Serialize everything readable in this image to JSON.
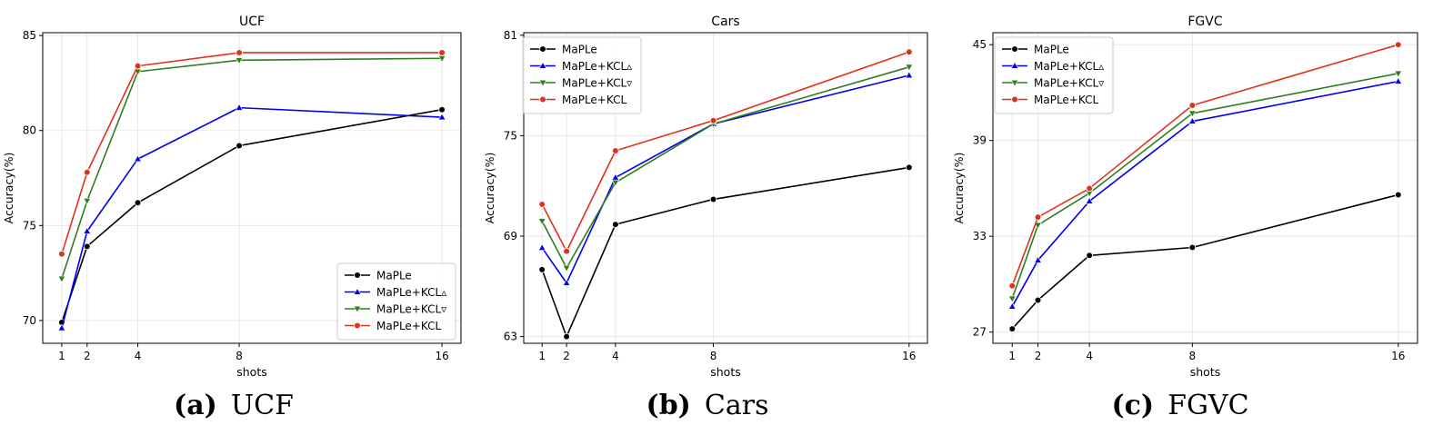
{
  "chart_data": [
    {
      "type": "line",
      "title": "UCF",
      "xlabel": "shots",
      "ylabel": "Accuracy(%)",
      "x": [
        1,
        2,
        4,
        8,
        16
      ],
      "xticks": [
        "1",
        "2",
        "4",
        "8",
        "16"
      ],
      "xlim": [
        0.25,
        16.75
      ],
      "ylim": [
        68.8,
        85.15
      ],
      "yticks": [
        70,
        75,
        80,
        85
      ],
      "ytick_labels": [
        "70",
        "75",
        "80",
        "85"
      ],
      "grid": true,
      "legend_position": "lower-right",
      "caption": {
        "label": "(a)",
        "text": "UCF"
      },
      "series": [
        {
          "name": "MaPLe",
          "color": "#000000",
          "marker": "circle",
          "values": [
            69.9,
            73.9,
            76.2,
            79.2,
            81.1
          ]
        },
        {
          "name": "MaPLe+KCL▵",
          "color": "#0000ee",
          "marker": "triangle-up",
          "values": [
            69.6,
            74.7,
            78.5,
            81.2,
            80.7
          ]
        },
        {
          "name": "MaPLe+KCL▿",
          "color": "#2e7d1e",
          "marker": "triangle-down",
          "values": [
            72.2,
            76.3,
            83.1,
            83.7,
            83.8
          ]
        },
        {
          "name": "MaPLe+KCL",
          "color": "#e0301e",
          "marker": "circle",
          "values": [
            73.5,
            77.8,
            83.4,
            84.1,
            84.1
          ]
        }
      ]
    },
    {
      "type": "line",
      "title": "Cars",
      "xlabel": "shots",
      "ylabel": "Accuracy(%)",
      "x": [
        1,
        2,
        4,
        8,
        16
      ],
      "xticks": [
        "1",
        "2",
        "4",
        "8",
        "16"
      ],
      "xlim": [
        0.25,
        16.75
      ],
      "ylim": [
        62.6,
        81.15
      ],
      "yticks": [
        63,
        69,
        75,
        81
      ],
      "ytick_labels": [
        "63",
        "69",
        "75",
        "81"
      ],
      "grid": true,
      "legend_position": "upper-left",
      "caption": {
        "label": "(b)",
        "text": "Cars"
      },
      "series": [
        {
          "name": "MaPLe",
          "color": "#000000",
          "marker": "circle",
          "values": [
            67.0,
            63.0,
            69.7,
            71.2,
            73.1
          ]
        },
        {
          "name": "MaPLe+KCL▵",
          "color": "#0000ee",
          "marker": "triangle-up",
          "values": [
            68.3,
            66.2,
            72.5,
            75.7,
            78.6
          ]
        },
        {
          "name": "MaPLe+KCL▿",
          "color": "#2e7d1e",
          "marker": "triangle-down",
          "values": [
            69.9,
            67.1,
            72.2,
            75.7,
            79.1
          ]
        },
        {
          "name": "MaPLe+KCL",
          "color": "#e0301e",
          "marker": "circle",
          "values": [
            70.9,
            68.1,
            74.1,
            75.9,
            80.0
          ]
        }
      ]
    },
    {
      "type": "line",
      "title": "FGVC",
      "xlabel": "shots",
      "ylabel": "Accuracy(%)",
      "x": [
        1,
        2,
        4,
        8,
        16
      ],
      "xticks": [
        "1",
        "2",
        "4",
        "8",
        "16"
      ],
      "xlim": [
        0.25,
        16.75
      ],
      "ylim": [
        26.3,
        45.75
      ],
      "yticks": [
        27,
        33,
        39,
        45
      ],
      "ytick_labels": [
        "27",
        "33",
        "39",
        "45"
      ],
      "grid": true,
      "legend_position": "upper-left",
      "caption": {
        "label": "(c)",
        "text": "FGVC"
      },
      "series": [
        {
          "name": "MaPLe",
          "color": "#000000",
          "marker": "circle",
          "values": [
            27.2,
            29.0,
            31.8,
            32.3,
            35.6
          ]
        },
        {
          "name": "MaPLe+KCL▵",
          "color": "#0000ee",
          "marker": "triangle-up",
          "values": [
            28.6,
            31.5,
            35.2,
            40.2,
            42.7
          ]
        },
        {
          "name": "MaPLe+KCL▿",
          "color": "#2e7d1e",
          "marker": "triangle-down",
          "values": [
            29.1,
            33.7,
            35.7,
            40.7,
            43.2
          ]
        },
        {
          "name": "MaPLe+KCL",
          "color": "#e0301e",
          "marker": "circle",
          "values": [
            29.9,
            34.2,
            36.0,
            41.2,
            45.0
          ]
        }
      ]
    }
  ]
}
